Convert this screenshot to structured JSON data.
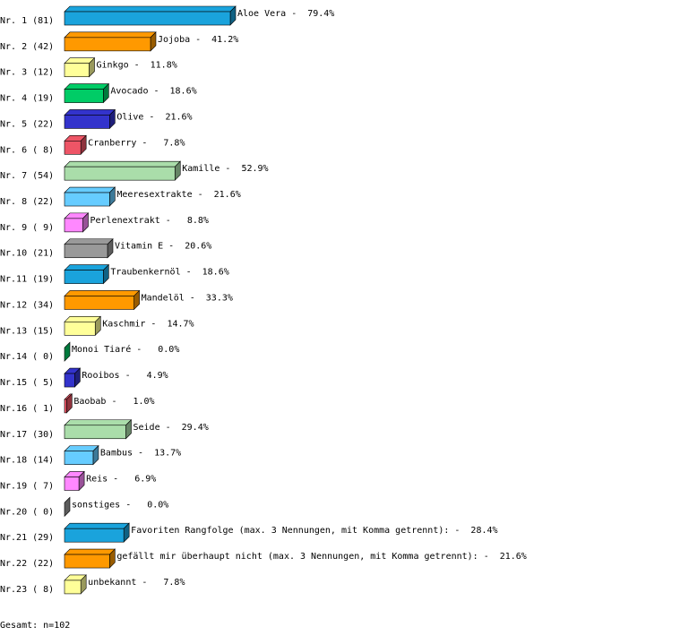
{
  "chart_data": {
    "type": "bar3d",
    "row_labels": [
      "Nr. 1 (81)",
      "Nr. 2 (42)",
      "Nr. 3 (12)",
      "Nr. 4 (19)",
      "Nr. 5 (22)",
      "Nr. 6 ( 8)",
      "Nr. 7 (54)",
      "Nr. 8 (22)",
      "Nr. 9 ( 9)",
      "Nr.10 (21)",
      "Nr.11 (19)",
      "Nr.12 (34)",
      "Nr.13 (15)",
      "Nr.14 ( 0)",
      "Nr.15 ( 5)",
      "Nr.16 ( 1)",
      "Nr.17 (30)",
      "Nr.18 (14)",
      "Nr.19 ( 7)",
      "Nr.20 ( 0)",
      "Nr.21 (29)",
      "Nr.22 (22)",
      "Nr.23 ( 8)"
    ],
    "categories": [
      "Aloe Vera",
      "Jojoba",
      "Ginkgo",
      "Avocado",
      "Olive",
      "Cranberry",
      "Kamille",
      "Meeresextrakte",
      "Perlenextrakt",
      "Vitamin E",
      "Traubenkernöl",
      "Mandelöl",
      "Kaschmir",
      "Monoi Tiaré",
      "Rooibos",
      "Baobab",
      "Seide",
      "Bambus",
      "Reis",
      "sonstiges",
      "Favoriten Rangfolge (max. 3 Nennungen, mit Komma getrennt):",
      "gefällt mir überhaupt nicht (max. 3 Nennungen, mit Komma getrennt):",
      "unbekannt"
    ],
    "separator": "-",
    "values": [
      79.4,
      41.2,
      11.8,
      18.6,
      21.6,
      7.8,
      52.9,
      21.6,
      8.8,
      20.6,
      18.6,
      33.3,
      14.7,
      0.0,
      4.9,
      1.0,
      29.4,
      13.7,
      6.9,
      0.0,
      28.4,
      21.6,
      7.8
    ],
    "value_labels": [
      "79.4%",
      "41.2%",
      "11.8%",
      "18.6%",
      "21.6%",
      "7.8%",
      "52.9%",
      "21.6%",
      "8.8%",
      "20.6%",
      "18.6%",
      "33.3%",
      "14.7%",
      "0.0%",
      "4.9%",
      "1.0%",
      "29.4%",
      "13.7%",
      "6.9%",
      "0.0%",
      "28.4%",
      "21.6%",
      "7.8%"
    ],
    "colors": [
      "#1aa3dc",
      "#ff9900",
      "#ffff99",
      "#00cc66",
      "#3333cc",
      "#ee5566",
      "#aaddaa",
      "#66ccff",
      "#ff88ff",
      "#999999",
      "#1aa3dc",
      "#ff9900",
      "#ffff99",
      "#00cc66",
      "#3333cc",
      "#ee5566",
      "#aaddaa",
      "#66ccff",
      "#ff88ff",
      "#999999",
      "#1aa3dc",
      "#ff9900",
      "#ffff99"
    ],
    "note": "Gesamt: n=102"
  }
}
